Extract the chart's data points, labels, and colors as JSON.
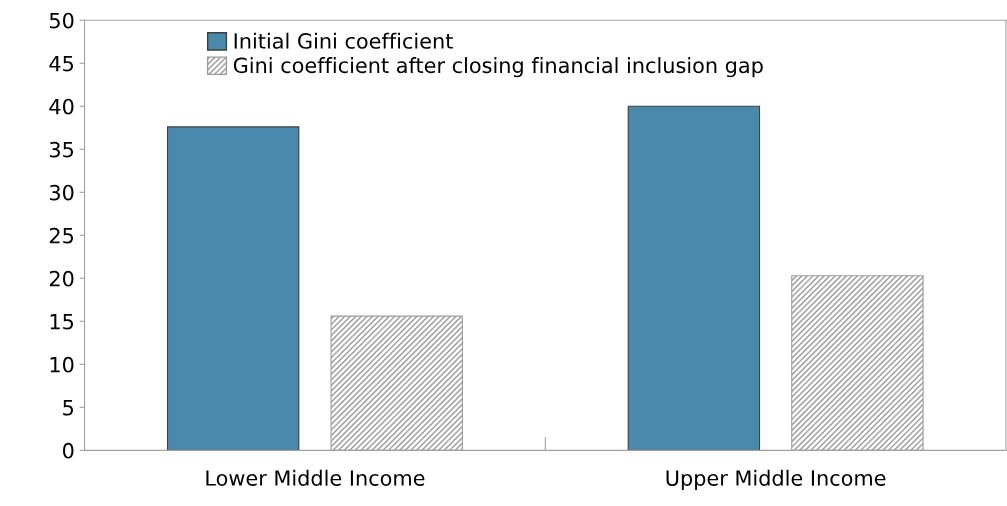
{
  "chart_data": {
    "type": "bar",
    "categories": [
      "Lower Middle Income",
      "Upper Middle Income"
    ],
    "series": [
      {
        "name": "Initial Gini coefficient",
        "color": "#4a89ac",
        "values": [
          37.6,
          40.0
        ]
      },
      {
        "name": "Gini coefficient after closing financial inclusion gap",
        "color": "#9a9a9a",
        "values": [
          15.6,
          20.3
        ]
      }
    ],
    "ylim": [
      0,
      50
    ],
    "yticks": [
      0,
      5,
      10,
      15,
      20,
      25,
      30,
      35,
      40,
      45,
      50
    ],
    "grid": false,
    "legend": "top left"
  }
}
